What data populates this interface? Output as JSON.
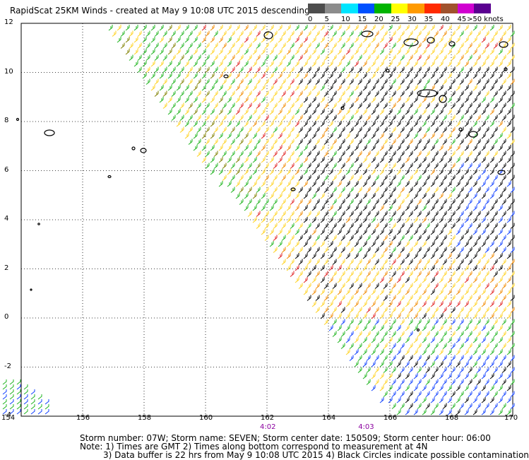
{
  "title": "RapidScat 25KM Winds - created at May  9 10:08 UTC 2015 descending",
  "legend": {
    "levels": [
      "0",
      "5",
      "10",
      "15",
      "20",
      "25",
      "30",
      "35",
      "40",
      "45",
      ">50 knots"
    ],
    "colors": [
      "#4d4d4d",
      "#8c8c8c",
      "#00e5ff",
      "#0050ff",
      "#00b400",
      "#ffff00",
      "#ff9a00",
      "#ff2a00",
      "#a0522d",
      "#d000d0",
      "#5a0090"
    ]
  },
  "map": {
    "lon_range": [
      154,
      170
    ],
    "lat_range": [
      -4,
      12
    ],
    "lon_ticks": [
      "154",
      "156",
      "158",
      "160",
      "162",
      "164",
      "166",
      "168",
      "170"
    ],
    "lat_ticks": [
      "12",
      "10",
      "8",
      "6",
      "4",
      "2",
      "0",
      "-2",
      "-4"
    ],
    "time_labels": [
      {
        "text": "4:02",
        "lon": 162
      },
      {
        "text": "4:03",
        "lon": 165.2
      }
    ],
    "barb_colors": {
      "black": "#000000",
      "yellow": "#ffd21e",
      "orange": "#f08a00",
      "red": "#e02020",
      "green": "#1fb41f",
      "blue": "#1040ff",
      "brown": "#a0522d",
      "olive": "#808000"
    }
  },
  "footer": {
    "line1": "Storm number: 07W;  Storm name: SEVEN;  Storm center date: 150509;  Storm center hour: 06:00",
    "line2": "Note: 1) Times are GMT  2) Times along bottom correspond to measurement at 4N",
    "line3": "3) Data buffer is 22 hrs from May  9 10:08 UTC 2015  4) Black Circles indicate possible contamination"
  }
}
